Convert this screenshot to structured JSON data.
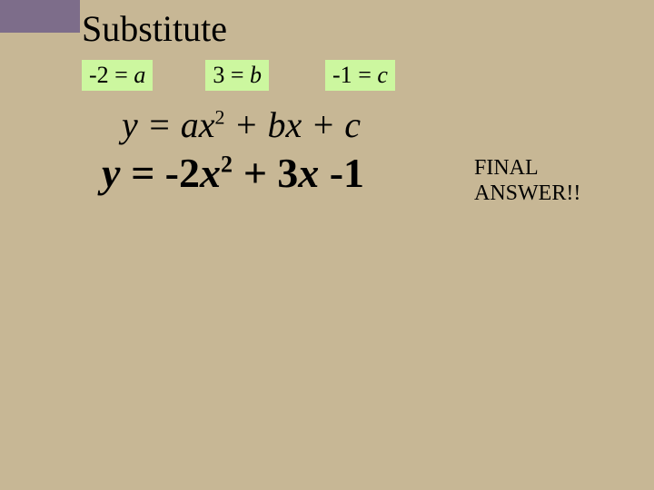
{
  "colors": {
    "background": "#c7b795",
    "corner_block": "#7d6d8a",
    "chip_bg": "#ccf79f",
    "text": "#000000"
  },
  "title": "Substitute",
  "chips": {
    "a": {
      "value": "-2",
      "eq": " = ",
      "var": "a"
    },
    "b": {
      "value": "3",
      "eq": " = ",
      "var": "b"
    },
    "c": {
      "value": "-1",
      "eq": " = ",
      "var": "c"
    }
  },
  "formula": {
    "lhs": "y",
    "eq": " = ",
    "t1_coef": "a",
    "t1_var": "x",
    "t1_exp": "2",
    "plus1": " + ",
    "t2_coef": "b",
    "t2_var": "x",
    "plus2": " + ",
    "t3": "c"
  },
  "answer": {
    "lhs": "y",
    "eq": " = ",
    "t1_coef": "-2",
    "t1_var": "x",
    "t1_exp": "2",
    "plus1": " + ",
    "t2_coef": "3",
    "t2_var": "x",
    "minus": " -",
    "t3": "1"
  },
  "final_label_line1": "FINAL",
  "final_label_line2": "ANSWER!!",
  "typography": {
    "title_fontsize": 40,
    "chip_fontsize": 26,
    "formula_fontsize": 40,
    "answer_fontsize": 46,
    "final_fontsize": 24
  }
}
